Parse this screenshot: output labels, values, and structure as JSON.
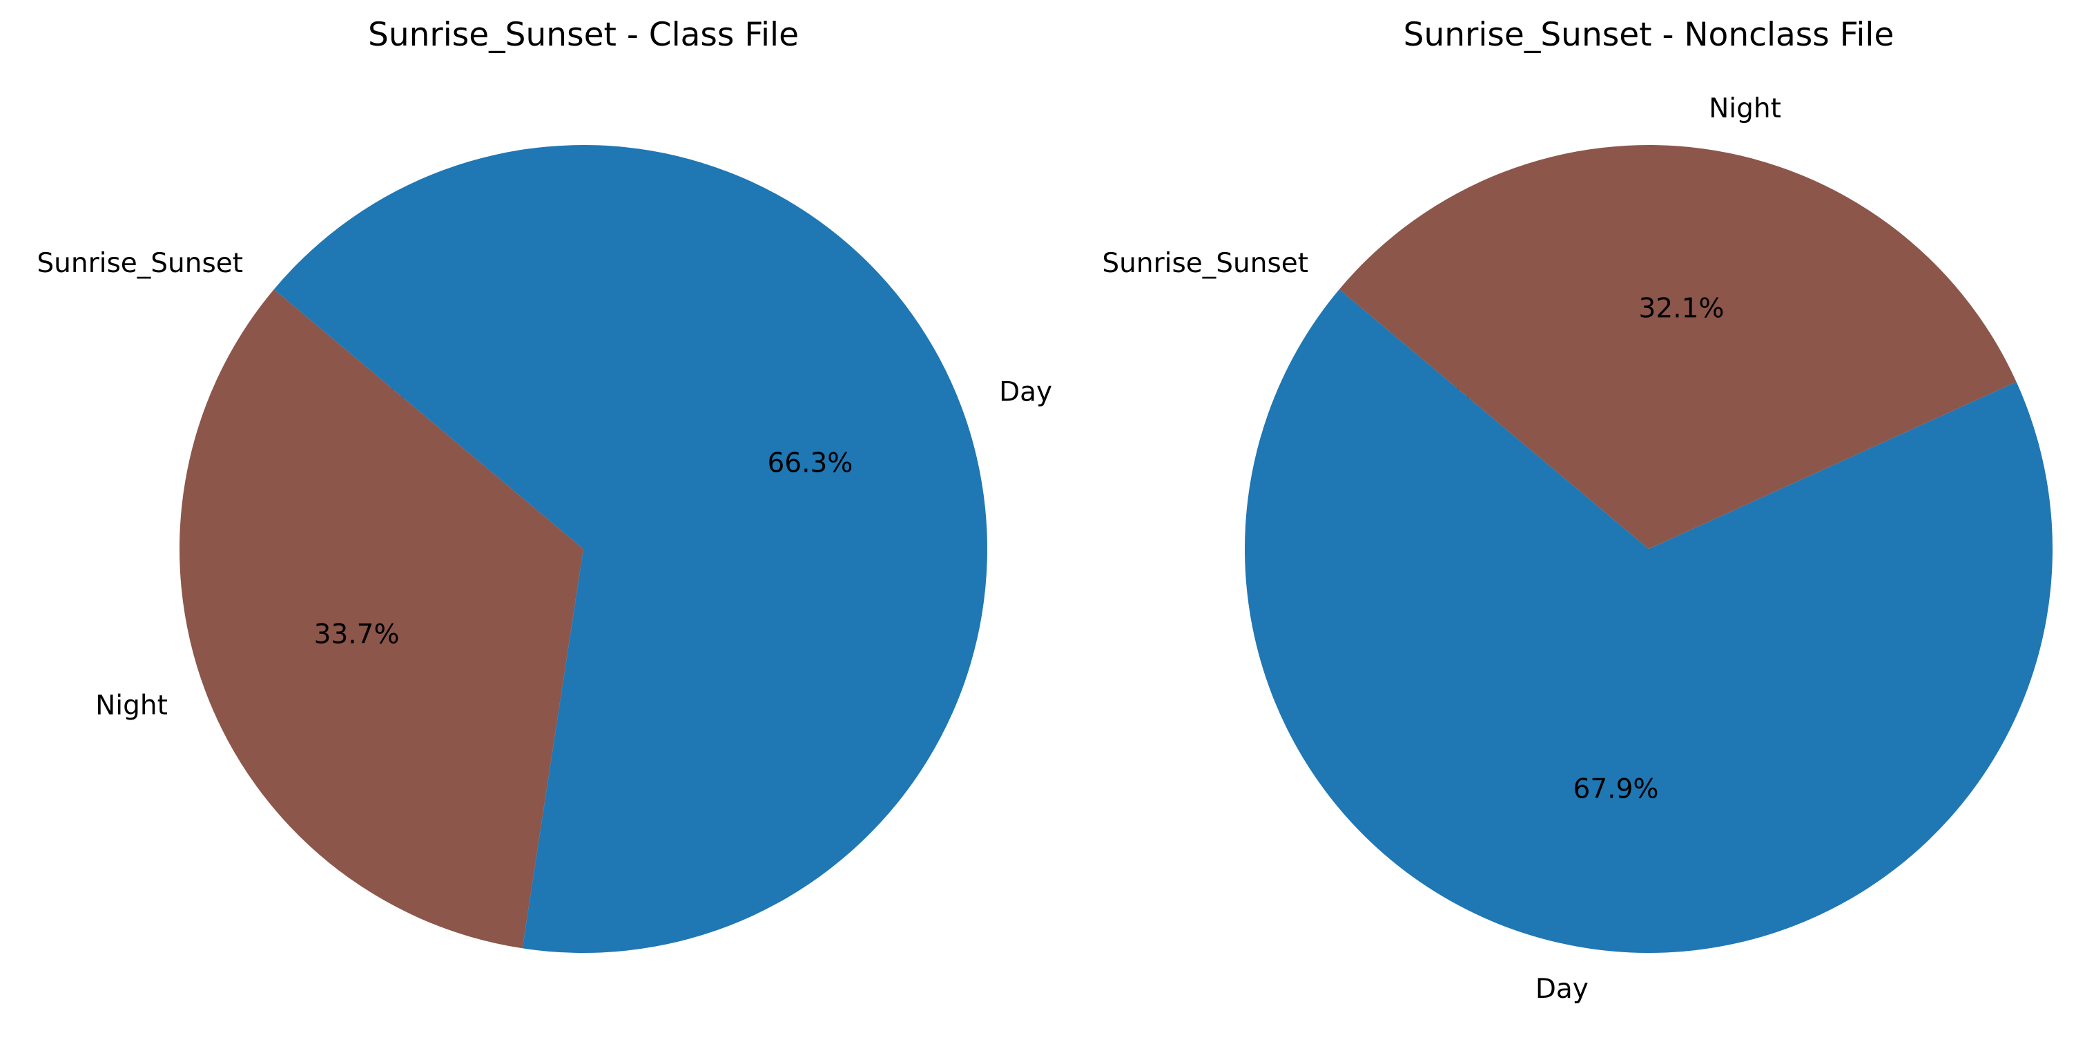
{
  "chart_data": [
    {
      "type": "pie",
      "title": "Sunrise_Sunset - Class File",
      "start_angle_deg": 140,
      "direction": "counterclockwise",
      "slices": [
        {
          "label": "Sunrise_Sunset",
          "value": 0.0,
          "pct_label": "0.0%",
          "color": "#9467bd"
        },
        {
          "label": "Night",
          "value": 33.7,
          "pct_label": "33.7%",
          "color": "#8c564b"
        },
        {
          "label": "Day",
          "value": 66.3,
          "pct_label": "66.3%",
          "color": "#1f77b4"
        }
      ]
    },
    {
      "type": "pie",
      "title": "Sunrise_Sunset - Nonclass File",
      "start_angle_deg": 140,
      "direction": "counterclockwise",
      "slices": [
        {
          "label": "Sunrise_Sunset",
          "value": 0.0,
          "pct_label": "0.0%",
          "color": "#9467bd"
        },
        {
          "label": "Day",
          "value": 67.9,
          "pct_label": "67.9%",
          "color": "#1f77b4"
        },
        {
          "label": "Night",
          "value": 32.1,
          "pct_label": "32.1%",
          "color": "#8c564b"
        }
      ]
    }
  ]
}
